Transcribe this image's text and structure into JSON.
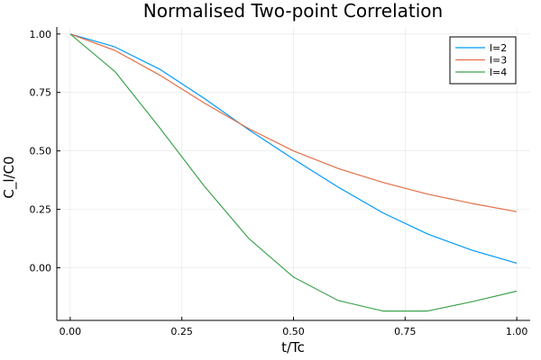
{
  "chart_data": {
    "type": "line",
    "title": "Normalised Two-point Correlation",
    "xlabel": "t/Tc",
    "ylabel": "C_l/C0",
    "xlim": [
      -0.03,
      1.03
    ],
    "ylim": [
      -0.225,
      1.03
    ],
    "xticks": [
      0.0,
      0.25,
      0.5,
      0.75,
      1.0
    ],
    "xtick_labels": [
      "0.00",
      "0.25",
      "0.50",
      "0.75",
      "1.00"
    ],
    "yticks": [
      0.0,
      0.25,
      0.5,
      0.75,
      1.0
    ],
    "ytick_labels": [
      "0.00",
      "0.25",
      "0.50",
      "0.75",
      "1.00"
    ],
    "grid": true,
    "legend_position": "top-right",
    "x": [
      0.0,
      0.1,
      0.2,
      0.3,
      0.4,
      0.5,
      0.6,
      0.7,
      0.8,
      0.9,
      1.0
    ],
    "series": [
      {
        "name": "l=2",
        "color": "#009AFA",
        "values": [
          1.0,
          0.945,
          0.85,
          0.725,
          0.59,
          0.465,
          0.345,
          0.235,
          0.145,
          0.075,
          0.02
        ]
      },
      {
        "name": "l=3",
        "color": "#E36F47",
        "values": [
          1.0,
          0.93,
          0.825,
          0.705,
          0.595,
          0.5,
          0.425,
          0.365,
          0.315,
          0.275,
          0.24
        ]
      },
      {
        "name": "l=4",
        "color": "#3EA44E",
        "values": [
          1.0,
          0.84,
          0.6,
          0.35,
          0.125,
          -0.04,
          -0.14,
          -0.185,
          -0.185,
          -0.145,
          -0.1
        ]
      }
    ]
  }
}
